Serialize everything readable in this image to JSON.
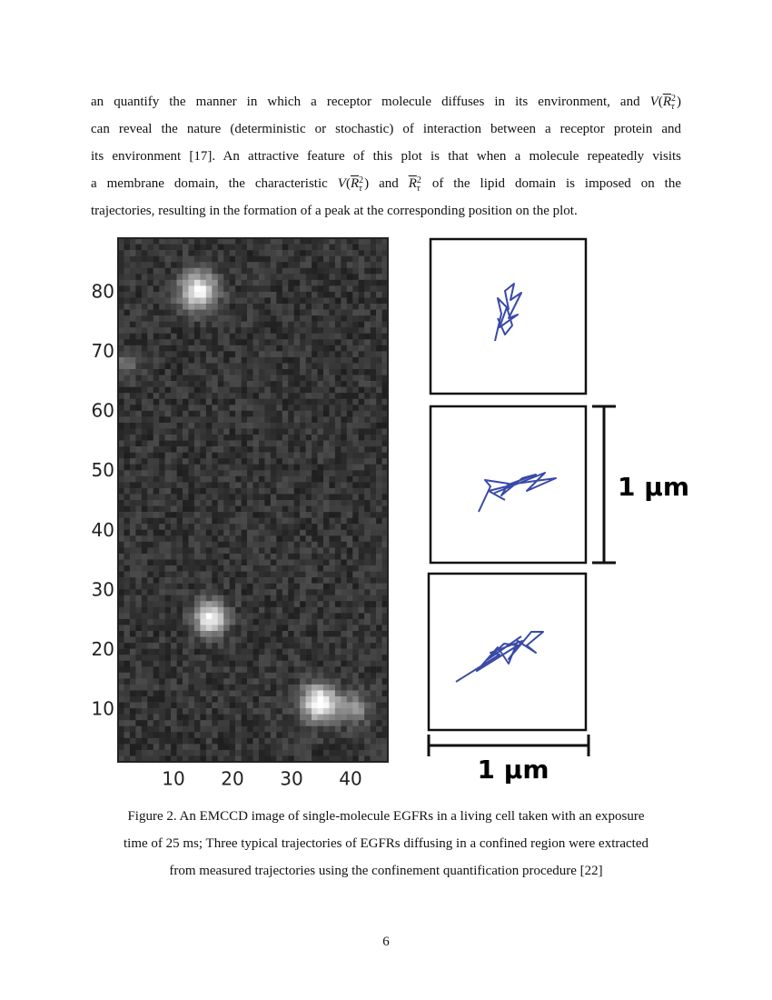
{
  "paragraph": {
    "lines": [
      [
        "an quantify the manner in which a receptor molecule diffuses in its environment, and ",
        {
          "fn": "V",
          "open": "(",
          "base": "R",
          "sub": "τ",
          "sup": "2",
          "close": ")"
        }
      ],
      [
        "can reveal the nature (deterministic or stochastic) of interaction between a receptor protein and"
      ],
      [
        "its environment [17].  An attractive feature of this plot is that when a molecule repeatedly visits"
      ],
      [
        "a membrane domain, the characteristic ",
        {
          "fn": "V",
          "open": "(",
          "base": "R",
          "sub": "τ",
          "sup": "2",
          "close": ")"
        },
        " and ",
        {
          "base": "R",
          "sub": "τ",
          "sup": "2"
        },
        " of the lipid domain is imposed on the"
      ],
      [
        "trajectories, resulting in the formation of a peak at the corresponding position on the plot."
      ]
    ]
  },
  "figure": {
    "y_ticks": [
      80,
      70,
      60,
      50,
      40,
      30,
      20,
      10
    ],
    "x_ticks": [
      10,
      20,
      30,
      40
    ],
    "scale_bar_vertical": "1 µm",
    "scale_bar_horizontal": "1 µm"
  },
  "caption": {
    "lines": [
      "Figure 2. An EMCCD image of single-molecule EGFRs in a living cell taken with an exposure",
      "time of 25 ms; Three typical trajectories of EGFRs diffusing in a confined region were extracted",
      "from measured trajectories using the confinement quantification procedure [22]"
    ]
  },
  "page_number": "6"
}
